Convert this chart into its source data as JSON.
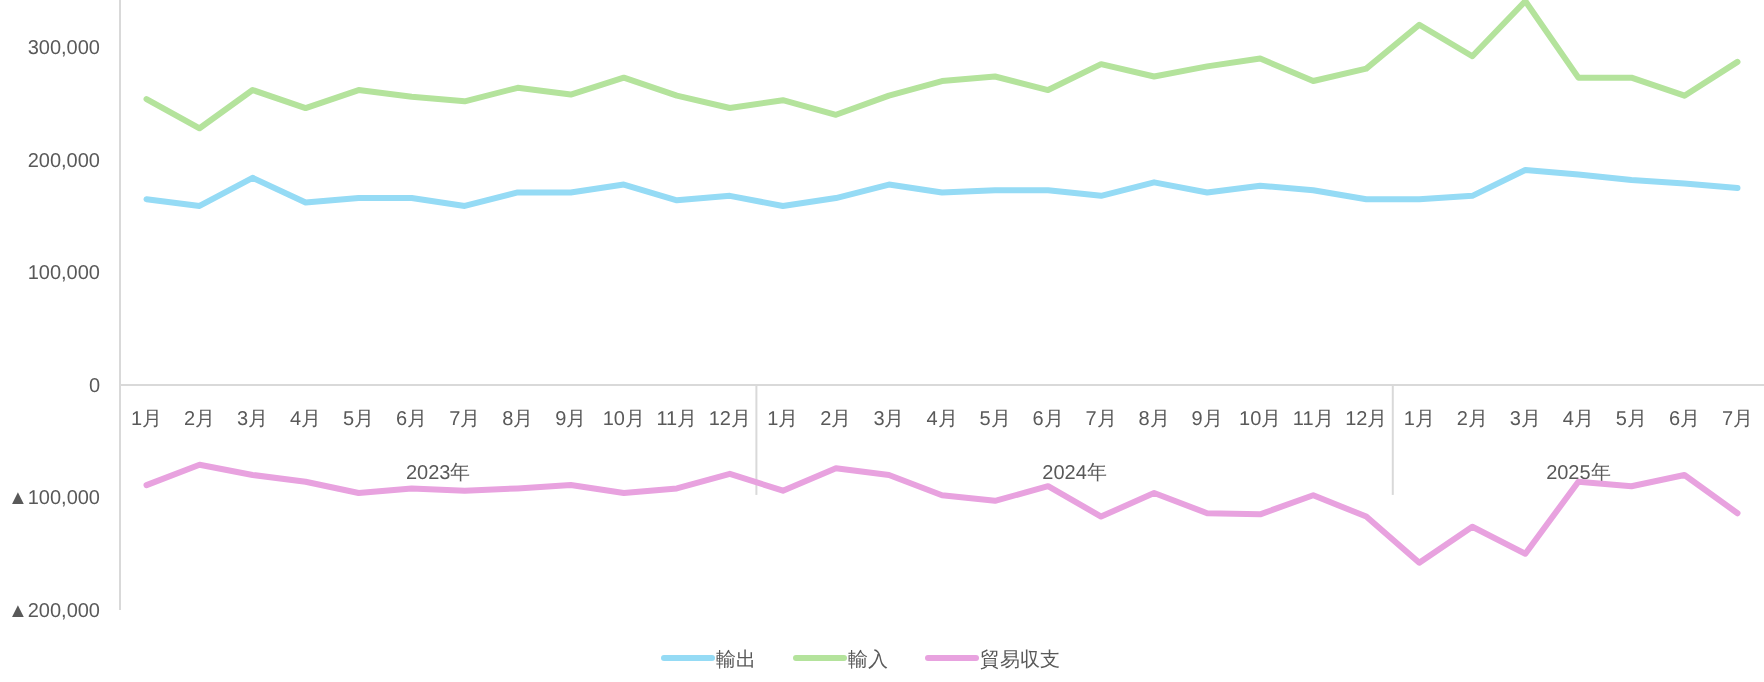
{
  "chart_data": {
    "type": "line",
    "categories": [
      "1月",
      "2月",
      "3月",
      "4月",
      "5月",
      "6月",
      "7月",
      "8月",
      "9月",
      "10月",
      "11月",
      "12月",
      "1月",
      "2月",
      "3月",
      "4月",
      "5月",
      "6月",
      "7月",
      "8月",
      "9月",
      "10月",
      "11月",
      "12月",
      "1月",
      "2月",
      "3月",
      "4月",
      "5月",
      "6月",
      "7月"
    ],
    "series": [
      {
        "name": "輸出",
        "color": "#95dbf5",
        "values": [
          165000,
          159000,
          184000,
          162000,
          166000,
          166000,
          159000,
          171000,
          171000,
          178000,
          164000,
          168000,
          159000,
          166000,
          178000,
          171000,
          173000,
          173000,
          168000,
          180000,
          171000,
          177000,
          173000,
          165000,
          165000,
          168000,
          191000,
          187000,
          182000,
          179000,
          175000
        ]
      },
      {
        "name": "輸入",
        "color": "#b4e39c",
        "values": [
          254000,
          228000,
          262000,
          246000,
          262000,
          256000,
          252000,
          264000,
          258000,
          273000,
          257000,
          246000,
          253000,
          240000,
          257000,
          270000,
          274000,
          262000,
          285000,
          274000,
          283000,
          290000,
          270000,
          281000,
          320000,
          292000,
          341000,
          273000,
          273000,
          257000,
          287000
        ]
      },
      {
        "name": "貿易収支",
        "color": "#e8a2df",
        "values": [
          -89000,
          -71000,
          -80000,
          -86000,
          -96000,
          -92000,
          -94000,
          -92000,
          -89000,
          -96000,
          -92000,
          -79000,
          -94000,
          -74000,
          -80000,
          -98000,
          -103000,
          -90000,
          -117000,
          -96000,
          -114000,
          -115000,
          -98000,
          -117000,
          -158000,
          -126000,
          -150000,
          -86000,
          -90000,
          -80000,
          -114000
        ]
      }
    ],
    "ylim": [
      -200000,
      342000
    ],
    "yticks": [
      {
        "value": 300000,
        "label": "300,000"
      },
      {
        "value": 200000,
        "label": "200,000"
      },
      {
        "value": 100000,
        "label": "100,000"
      },
      0,
      {
        "value": -100000,
        "label": "▲100,000"
      },
      {
        "value": -200000,
        "label": "▲200,000"
      }
    ],
    "annotations": [
      "2023年",
      "2024年",
      "2025年"
    ],
    "grid": false,
    "legend": "bottom",
    "line_style": "solid",
    "marker": "none"
  }
}
